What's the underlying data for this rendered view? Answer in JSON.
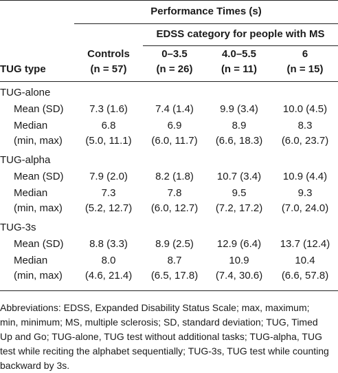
{
  "header": {
    "spanner": "Performance Times (s)",
    "subspanner": "EDSS category for people with MS",
    "row_label": "TUG type",
    "columns": [
      {
        "name": "Controls",
        "n": "(n = 57)"
      },
      {
        "name": "0–3.5",
        "n": "(n = 26)"
      },
      {
        "name": "4.0–5.5",
        "n": "(n = 11)"
      },
      {
        "name": "6",
        "n": "(n = 15)"
      }
    ]
  },
  "groups": [
    {
      "title": "TUG-alone",
      "mean_label": "Mean (SD)",
      "median_label": "Median",
      "minmax_label": "(min, max)",
      "mean": [
        "7.3 (1.6)",
        "7.4 (1.4)",
        "9.9 (3.4)",
        "10.0 (4.5)"
      ],
      "median": [
        "6.8",
        "6.9",
        "8.9",
        "8.3"
      ],
      "range": [
        "(5.0, 11.1)",
        "(6.0, 11.7)",
        "(6.6, 18.3)",
        "(6.0, 23.7)"
      ]
    },
    {
      "title": "TUG-alpha",
      "mean_label": "Mean (SD)",
      "median_label": "Median",
      "minmax_label": "(min, max)",
      "mean": [
        "7.9 (2.0)",
        "8.2 (1.8)",
        "10.7 (3.4)",
        "10.9 (4.4)"
      ],
      "median": [
        "7.3",
        "7.8",
        "9.5",
        "9.3"
      ],
      "range": [
        "(5.2, 12.7)",
        "(6.0, 12.7)",
        "(7.2, 17.2)",
        "(7.0, 24.0)"
      ]
    },
    {
      "title": "TUG-3s",
      "mean_label": "Mean (SD)",
      "median_label": "Median",
      "minmax_label": "(min, max)",
      "mean": [
        "8.8 (3.3)",
        "8.9 (2.5)",
        "12.9 (6.4)",
        "13.7 (12.4)"
      ],
      "median": [
        "8.0",
        "8.7",
        "10.9",
        "10.4"
      ],
      "range": [
        "(4.6, 21.4)",
        "(6.5, 17.8)",
        "(7.4, 30.6)",
        "(6.6, 57.8)"
      ]
    }
  ],
  "footnote": "Abbreviations: EDSS, Expanded Disability Status Scale; max, maximum; min, minimum; MS, multiple sclerosis; SD, standard deviation; TUG, Timed Up and Go; TUG-alone, TUG test without additional tasks; TUG-alpha, TUG test while reciting the alphabet sequentially; TUG-3s, TUG test while counting backward by 3s."
}
